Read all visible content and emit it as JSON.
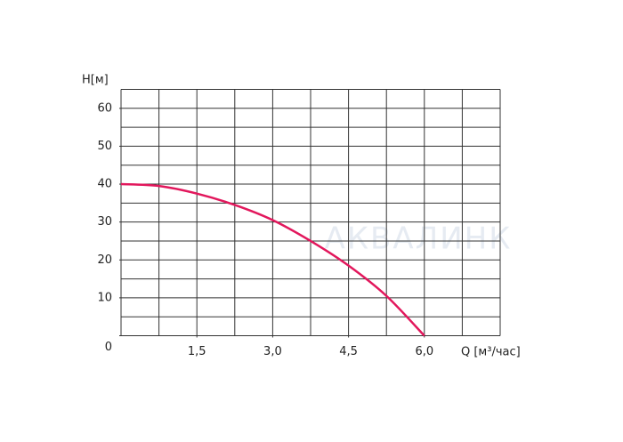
{
  "chart_data": {
    "type": "line",
    "y_label": "H[м]",
    "x_label": "Q [м³/час]",
    "watermark": "АКВАЛИНК",
    "x": [
      0,
      0.75,
      1.5,
      2.25,
      3.0,
      3.75,
      4.5,
      5.25,
      6.0
    ],
    "series": [
      {
        "name": null,
        "color": "#e2175c",
        "values": [
          40,
          39.5,
          37.5,
          34.5,
          30.5,
          25,
          18.5,
          10.5,
          0
        ]
      }
    ],
    "xlim": [
      0,
      7.5
    ],
    "ylim": [
      0,
      65
    ],
    "xticks": [
      {
        "value": 1.5,
        "label": "1,5"
      },
      {
        "value": 3.0,
        "label": "3,0"
      },
      {
        "value": 4.5,
        "label": "4,5"
      },
      {
        "value": 6.0,
        "label": "6,0"
      }
    ],
    "yticks": [
      0,
      10,
      20,
      30,
      40,
      50,
      60
    ],
    "grid": {
      "x_step": 0.75,
      "y_step": 5
    }
  }
}
